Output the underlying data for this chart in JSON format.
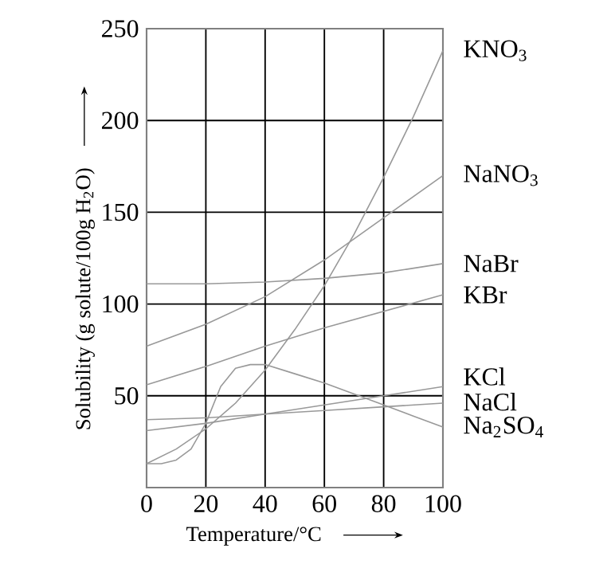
{
  "chart_data": {
    "type": "line",
    "xlabel": "Temperature/°C",
    "ylabel": "Solubility (g solute/100g H$_{2}$O)",
    "xlim": [
      0,
      100
    ],
    "ylim": [
      0,
      250
    ],
    "xticks": [
      0,
      20,
      40,
      60,
      80,
      100
    ],
    "yticks": [
      50,
      100,
      150,
      200,
      250
    ],
    "grid": true,
    "marker": "none",
    "line_style": "solid",
    "series": [
      {
        "name": "KNO$_{3}$",
        "color": "#999999",
        "x": [
          0,
          10,
          20,
          30,
          40,
          50,
          60,
          70,
          80,
          90,
          100
        ],
        "values": [
          13,
          21,
          32,
          46,
          64,
          86,
          110,
          138,
          169,
          202,
          238
        ]
      },
      {
        "name": "NaNO$_{3}$",
        "color": "#999999",
        "x": [
          0,
          20,
          40,
          60,
          80,
          100
        ],
        "values": [
          77,
          89,
          104,
          124,
          147,
          170
        ]
      },
      {
        "name": "NaBr",
        "color": "#999999",
        "x": [
          0,
          20,
          40,
          60,
          80,
          100
        ],
        "values": [
          111,
          111,
          112,
          114,
          117,
          122
        ]
      },
      {
        "name": "KBr",
        "color": "#999999",
        "x": [
          0,
          20,
          40,
          60,
          80,
          100
        ],
        "values": [
          56,
          66,
          77,
          87,
          96,
          105
        ]
      },
      {
        "name": "KCl",
        "color": "#999999",
        "x": [
          0,
          20,
          40,
          60,
          80,
          100
        ],
        "values": [
          31,
          35,
          40,
          45,
          50,
          55
        ]
      },
      {
        "name": "NaCl",
        "color": "#999999",
        "x": [
          0,
          20,
          40,
          60,
          80,
          100
        ],
        "values": [
          37,
          38,
          40,
          42,
          44,
          46
        ]
      },
      {
        "name": "Na$_{2}$SO$_{4}$",
        "color": "#999999",
        "x": [
          0,
          5,
          10,
          15,
          20,
          25,
          30,
          35,
          40,
          50,
          60,
          70,
          80,
          90,
          100
        ],
        "values": [
          13,
          13,
          15,
          21,
          35,
          55,
          65,
          67,
          67,
          62,
          57,
          51,
          45,
          39,
          33
        ]
      }
    ]
  }
}
